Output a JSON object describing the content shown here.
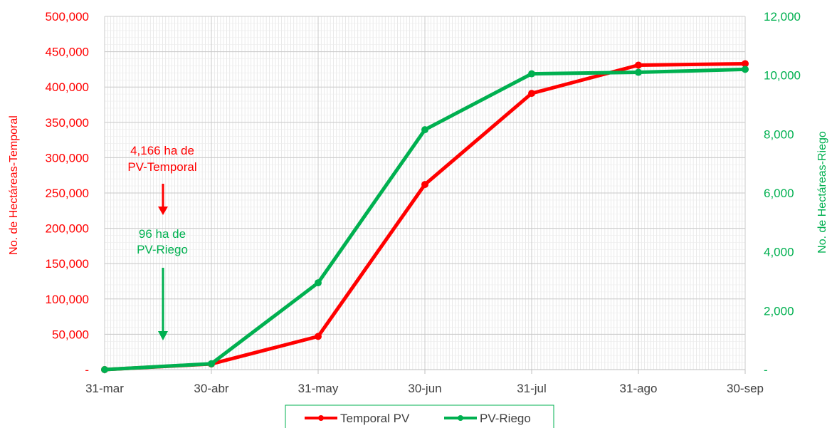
{
  "chart_data": {
    "type": "line",
    "title": "",
    "categories": [
      "31-mar",
      "30-abr",
      "31-may",
      "30-jun",
      "31-jul",
      "31-ago",
      "30-sep"
    ],
    "y_left": {
      "label": "No. de Hectáreas-Temporal",
      "range": [
        0,
        500000
      ],
      "ticks": [
        "-",
        "50,000",
        "100,000",
        "150,000",
        "200,000",
        "250,000",
        "300,000",
        "350,000",
        "400,000",
        "450,000",
        "500,000"
      ],
      "color": "#ff0000"
    },
    "y_right": {
      "label": "No. de Hectáreas-Riego",
      "range": [
        0,
        12000
      ],
      "ticks": [
        "-",
        "2,000",
        "4,000",
        "6,000",
        "8,000",
        "10,000",
        "12,000"
      ],
      "color": "#00b050"
    },
    "series": [
      {
        "name": "Temporal PV",
        "axis": "left",
        "color": "#ff0000",
        "values": [
          0,
          8000,
          47000,
          262000,
          391000,
          431000,
          433000
        ]
      },
      {
        "name": "PV-Riego",
        "axis": "right",
        "color": "#00b050",
        "values": [
          0,
          200,
          2950,
          8150,
          10050,
          10100,
          10200
        ]
      }
    ],
    "annotations": [
      {
        "lines": [
          "4,166 ha de",
          "PV-Temporal"
        ],
        "color": "#ff0000"
      },
      {
        "lines": [
          "96 ha de",
          "PV-Riego"
        ],
        "color": "#00b050"
      }
    ],
    "grid": true,
    "legend_position": "bottom"
  }
}
